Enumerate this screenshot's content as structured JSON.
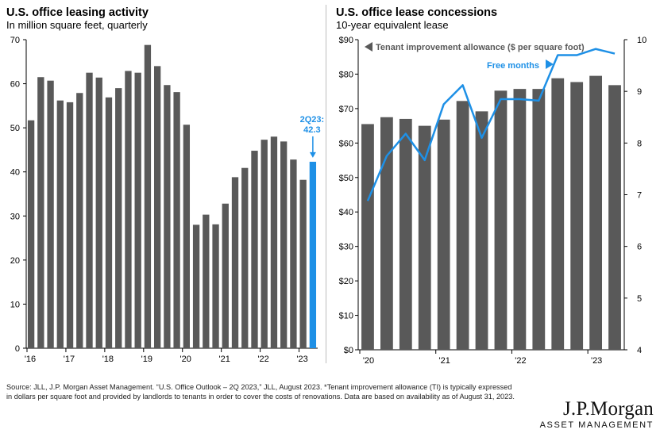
{
  "chart_data": [
    {
      "type": "bar",
      "title": "U.S. office leasing activity",
      "subtitle": "In million square feet, quarterly",
      "ylim": [
        0,
        70
      ],
      "yticks": [
        0,
        10,
        20,
        30,
        40,
        50,
        60,
        70
      ],
      "xtick_labels": [
        "'16",
        "'17",
        "'18",
        "'19",
        "'20",
        "'21",
        "'22",
        "'23"
      ],
      "categories": [
        "1Q16",
        "2Q16",
        "3Q16",
        "4Q16",
        "1Q17",
        "2Q17",
        "3Q17",
        "4Q17",
        "1Q18",
        "2Q18",
        "3Q18",
        "4Q18",
        "1Q19",
        "2Q19",
        "3Q19",
        "4Q19",
        "1Q20",
        "2Q20",
        "3Q20",
        "4Q20",
        "1Q21",
        "2Q21",
        "3Q21",
        "4Q21",
        "1Q22",
        "2Q22",
        "3Q22",
        "4Q22",
        "1Q23",
        "2Q23"
      ],
      "values": [
        51.7,
        61.5,
        60.7,
        56.2,
        55.8,
        57.9,
        62.5,
        61.4,
        56.9,
        59.0,
        62.9,
        62.5,
        68.8,
        64.0,
        59.7,
        58.1,
        50.7,
        28.0,
        30.3,
        28.1,
        32.8,
        38.8,
        40.9,
        44.8,
        47.3,
        48.0,
        46.9,
        42.8,
        38.2,
        42.3
      ],
      "highlight_color": "#1e90e6",
      "bar_color": "#595959",
      "grid": false,
      "annotation": {
        "line1": "2Q23:",
        "line2": "42.3"
      }
    },
    {
      "type": "bar",
      "title": "U.S. office lease concessions",
      "subtitle": "10-year equivalent lease",
      "ylim": [
        0,
        90
      ],
      "yticks": [
        "$0",
        "$10",
        "$20",
        "$30",
        "$40",
        "$50",
        "$60",
        "$70",
        "$80",
        "$90"
      ],
      "y2lim": [
        4,
        10
      ],
      "y2ticks": [
        4,
        5,
        6,
        7,
        8,
        9,
        10
      ],
      "xtick_labels": [
        "'20",
        "'21",
        "'22",
        "'23"
      ],
      "categories": [
        "1Q20",
        "2Q20",
        "3Q20",
        "4Q20",
        "1Q21",
        "2Q21",
        "3Q21",
        "4Q21",
        "1Q22",
        "2Q22",
        "3Q22",
        "4Q22",
        "1Q23",
        "2Q23"
      ],
      "series": [
        {
          "name": "Tenant improvement allowance ($ per square foot)",
          "type": "bar",
          "axis": "left",
          "color": "#595959",
          "values": [
            65.5,
            67.5,
            67.0,
            65.0,
            66.8,
            72.2,
            69.2,
            75.2,
            75.7,
            75.7,
            78.8,
            77.7,
            79.5,
            76.8
          ]
        },
        {
          "name": "Free months",
          "type": "line",
          "axis": "right",
          "color": "#1e90e6",
          "values": [
            6.88,
            7.75,
            8.18,
            7.67,
            8.75,
            9.12,
            8.1,
            8.85,
            8.85,
            8.82,
            9.7,
            9.7,
            9.82,
            9.73
          ]
        }
      ],
      "grid": false
    }
  ],
  "footer": {
    "source": "Source: JLL, J.P. Morgan Asset Management. “U.S. Office Outlook – 2Q 2023,” JLL, August 2023. *Tenant improvement allowance (TI) is typically expressed in dollars per square foot and provided by landlords to tenants in order to cover the costs of renovations. Data are based on availability as of August 31, 2023.",
    "logo_name": "J.P.Morgan",
    "logo_sub": "ASSET MANAGEMENT"
  }
}
